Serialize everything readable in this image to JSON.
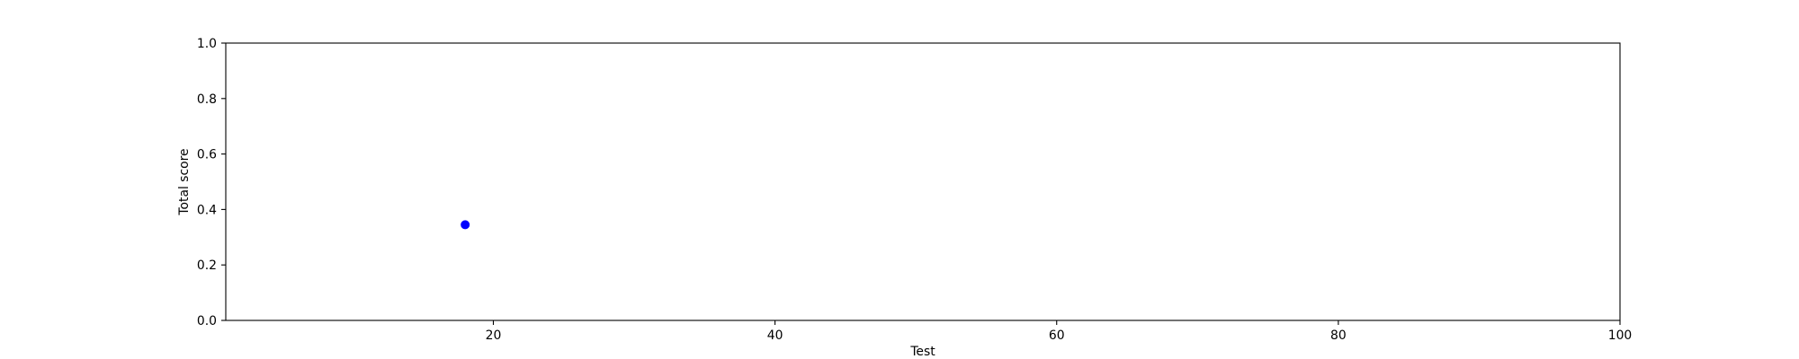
{
  "chart_data": {
    "type": "scatter",
    "title": "",
    "xlabel": "Test",
    "ylabel": "Total score",
    "xlim": [
      1,
      100
    ],
    "ylim": [
      0.0,
      1.0
    ],
    "x_ticks": [
      20,
      40,
      60,
      80,
      100
    ],
    "x_tick_labels": [
      "20",
      "40",
      "60",
      "80",
      "100"
    ],
    "y_ticks": [
      0.0,
      0.2,
      0.4,
      0.6,
      0.8,
      1.0
    ],
    "y_tick_labels": [
      "0.0",
      "0.2",
      "0.4",
      "0.6",
      "0.8",
      "1.0"
    ],
    "grid": false,
    "series": [
      {
        "color": "#0000ff",
        "x": [
          18
        ],
        "y": [
          0.345
        ]
      }
    ]
  }
}
